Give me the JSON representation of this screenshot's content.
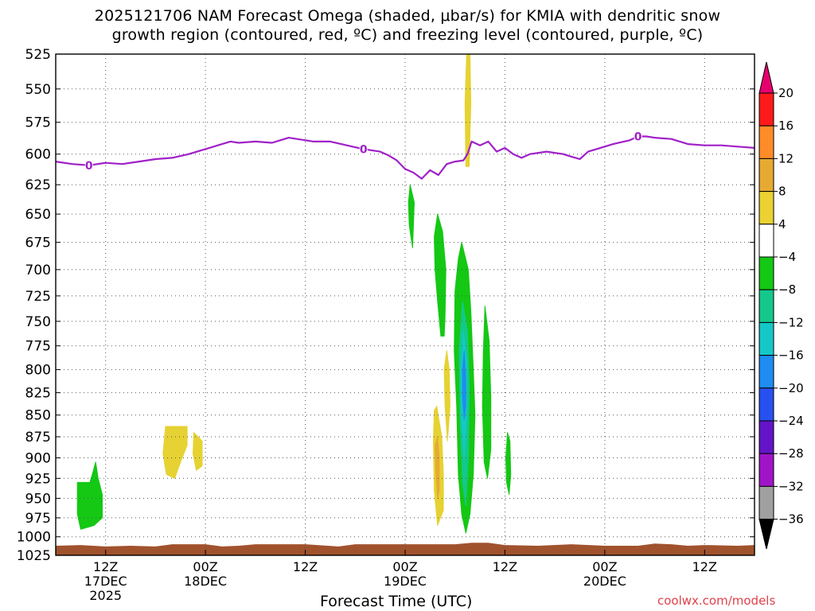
{
  "title_line1": "2025121706 NAM Forecast Omega (shaded, μbar/s) for KMIA with dendritic snow",
  "title_line2": "growth region (contoured, red, ºC) and freezing level (contoured, purple, ºC)",
  "credit": "coolwx.com/models",
  "chart_data": {
    "type": "time-height cross section",
    "title": "2025121706 NAM Forecast Omega (shaded, μbar/s) for KMIA with dendritic snow growth region (contoured, red, ºC) and freezing level (contoured, purple, ºC)",
    "xlabel": "Forecast Time (UTC)",
    "ylabel": "",
    "x_ticks": [
      {
        "label": "12Z",
        "sub1": "17DEC",
        "sub2": "2025",
        "hour": 6
      },
      {
        "label": "00Z",
        "sub1": "18DEC",
        "sub2": "",
        "hour": 18
      },
      {
        "label": "12Z",
        "sub1": "",
        "sub2": "",
        "hour": 30
      },
      {
        "label": "00Z",
        "sub1": "19DEC",
        "sub2": "",
        "hour": 42
      },
      {
        "label": "12Z",
        "sub1": "",
        "sub2": "",
        "hour": 54
      },
      {
        "label": "00Z",
        "sub1": "20DEC",
        "sub2": "",
        "hour": 66
      },
      {
        "label": "12Z",
        "sub1": "",
        "sub2": "",
        "hour": 78
      }
    ],
    "x_range_hours": [
      0,
      84
    ],
    "y_ticks": [
      525,
      550,
      575,
      600,
      625,
      650,
      675,
      700,
      725,
      750,
      775,
      800,
      825,
      850,
      875,
      900,
      925,
      950,
      975,
      1000,
      1025
    ],
    "y_range_hPa": [
      525,
      1025
    ],
    "y_scale": "log-pressure (inverted)",
    "grid": true,
    "freezing_level": {
      "label": "0",
      "label_hours": [
        4,
        37,
        70
      ],
      "points": [
        [
          0,
          606
        ],
        [
          2,
          608
        ],
        [
          4,
          609
        ],
        [
          6,
          607
        ],
        [
          8,
          608
        ],
        [
          10,
          606
        ],
        [
          12,
          604
        ],
        [
          14,
          603
        ],
        [
          16,
          600
        ],
        [
          18,
          596
        ],
        [
          20,
          592
        ],
        [
          21,
          590
        ],
        [
          22,
          591
        ],
        [
          24,
          590
        ],
        [
          26,
          591
        ],
        [
          27,
          589
        ],
        [
          28,
          587
        ],
        [
          29,
          588
        ],
        [
          31,
          590
        ],
        [
          33,
          590
        ],
        [
          35,
          593
        ],
        [
          37,
          596
        ],
        [
          39,
          598
        ],
        [
          40,
          601
        ],
        [
          41,
          605
        ],
        [
          42,
          612
        ],
        [
          43,
          615
        ],
        [
          44,
          620
        ],
        [
          45,
          613
        ],
        [
          46,
          617
        ],
        [
          47,
          608
        ],
        [
          48,
          606
        ],
        [
          49,
          605
        ],
        [
          49.5,
          600
        ],
        [
          50,
          590
        ],
        [
          51,
          593
        ],
        [
          52,
          590
        ],
        [
          53,
          598
        ],
        [
          54,
          595
        ],
        [
          55,
          600
        ],
        [
          56,
          603
        ],
        [
          57,
          600
        ],
        [
          59,
          598
        ],
        [
          61,
          600
        ],
        [
          62,
          602
        ],
        [
          63,
          604
        ],
        [
          64,
          598
        ],
        [
          65,
          596
        ],
        [
          67,
          592
        ],
        [
          69,
          589
        ],
        [
          70,
          586
        ],
        [
          71,
          586
        ],
        [
          72,
          587
        ],
        [
          74,
          588
        ],
        [
          76,
          592
        ],
        [
          78,
          593
        ],
        [
          80,
          593
        ],
        [
          82,
          594
        ],
        [
          84,
          595
        ]
      ]
    },
    "omega_colorbar": {
      "levels": [
        20,
        16,
        12,
        8,
        4,
        -4,
        -8,
        -12,
        -16,
        -20,
        -24,
        -28,
        -32,
        -36
      ],
      "colors": [
        "#ff1a1a",
        "#ff8c28",
        "#e6aa32",
        "#ebd232",
        "#ffffff",
        "#14c814",
        "#14c88c",
        "#14c8c8",
        "#1e8cf0",
        "#2850f0",
        "#6414c8",
        "#a014c8",
        "#a0a0a0"
      ],
      "top_arrow_color": "#e6006e",
      "bottom_arrow_color": "#000000"
    },
    "omega_regions": [
      {
        "range": "4 to 8",
        "color": "#e6d232",
        "points": [
          [
            47.0,
            780
          ],
          [
            47.3,
            800
          ],
          [
            47.4,
            840
          ],
          [
            47.1,
            880
          ],
          [
            46.8,
            840
          ],
          [
            46.7,
            800
          ]
        ]
      },
      {
        "range": "4 to 8",
        "color": "#e6d232",
        "points": [
          [
            49.4,
            525
          ],
          [
            49.8,
            525
          ],
          [
            49.9,
            560
          ],
          [
            49.7,
            610
          ],
          [
            49.3,
            610
          ],
          [
            49.2,
            560
          ]
        ]
      },
      {
        "range": "4 to 8",
        "color": "#e6d232",
        "points": [
          [
            13.2,
            863
          ],
          [
            15.8,
            863
          ],
          [
            15.8,
            885
          ],
          [
            15.0,
            905
          ],
          [
            14.3,
            925
          ],
          [
            13.3,
            920
          ],
          [
            12.9,
            895
          ]
        ]
      },
      {
        "range": "4 to 8",
        "color": "#e6d232",
        "points": [
          [
            16.6,
            870
          ],
          [
            17.6,
            880
          ],
          [
            17.6,
            910
          ],
          [
            16.9,
            915
          ],
          [
            16.5,
            895
          ]
        ]
      },
      {
        "range": "4 to 12",
        "color": "#e6d232",
        "points": [
          [
            45.8,
            840
          ],
          [
            46.4,
            875
          ],
          [
            46.6,
            920
          ],
          [
            46.6,
            965
          ],
          [
            45.9,
            985
          ],
          [
            45.5,
            940
          ],
          [
            45.4,
            880
          ],
          [
            45.5,
            845
          ]
        ]
      },
      {
        "range": "8 to 12",
        "color": "#e6aa32",
        "points": [
          [
            45.9,
            875
          ],
          [
            46.1,
            900
          ],
          [
            46.1,
            940
          ],
          [
            45.9,
            950
          ],
          [
            45.7,
            920
          ],
          [
            45.6,
            885
          ]
        ]
      },
      {
        "range": "-4 to -8",
        "color": "#14c814",
        "points": [
          [
            2.6,
            930
          ],
          [
            4.1,
            930
          ],
          [
            4.4,
            920
          ],
          [
            4.8,
            905
          ],
          [
            5.1,
            925
          ],
          [
            5.6,
            945
          ],
          [
            5.6,
            975
          ],
          [
            4.6,
            985
          ],
          [
            3.0,
            990
          ],
          [
            2.6,
            970
          ]
        ]
      },
      {
        "range": "-4 to -8",
        "color": "#14c814",
        "points": [
          [
            42.6,
            625
          ],
          [
            43.1,
            640
          ],
          [
            42.9,
            680
          ],
          [
            42.5,
            660
          ],
          [
            42.4,
            640
          ]
        ]
      },
      {
        "range": "-4 to -8",
        "color": "#14c814",
        "points": [
          [
            45.9,
            650
          ],
          [
            46.5,
            665
          ],
          [
            46.9,
            700
          ],
          [
            46.8,
            745
          ],
          [
            46.7,
            765
          ],
          [
            46.3,
            765
          ],
          [
            45.9,
            730
          ],
          [
            45.6,
            700
          ],
          [
            45.5,
            670
          ]
        ]
      },
      {
        "range": "-4 to -8",
        "color": "#14c814",
        "points": [
          [
            48.8,
            675
          ],
          [
            49.6,
            700
          ],
          [
            49.9,
            740
          ],
          [
            50.2,
            800
          ],
          [
            50.4,
            850
          ],
          [
            50.2,
            920
          ],
          [
            49.8,
            970
          ],
          [
            49.3,
            995
          ],
          [
            48.8,
            970
          ],
          [
            48.4,
            920
          ],
          [
            48.2,
            840
          ],
          [
            47.9,
            780
          ],
          [
            48.0,
            720
          ],
          [
            48.4,
            690
          ]
        ]
      },
      {
        "range": "-4 to -8",
        "color": "#14c814",
        "points": [
          [
            51.6,
            735
          ],
          [
            52.1,
            770
          ],
          [
            52.3,
            830
          ],
          [
            52.3,
            890
          ],
          [
            51.9,
            925
          ],
          [
            51.5,
            905
          ],
          [
            51.3,
            840
          ],
          [
            51.4,
            780
          ]
        ]
      },
      {
        "range": "-4 to -8",
        "color": "#14c814",
        "points": [
          [
            54.3,
            870
          ],
          [
            54.6,
            880
          ],
          [
            54.7,
            920
          ],
          [
            54.5,
            945
          ],
          [
            54.2,
            930
          ],
          [
            54.1,
            900
          ]
        ]
      },
      {
        "range": "-8 to -16",
        "color": "#14c88c",
        "points": [
          [
            48.9,
            730
          ],
          [
            49.5,
            760
          ],
          [
            49.7,
            820
          ],
          [
            49.6,
            900
          ],
          [
            49.3,
            960
          ],
          [
            48.9,
            930
          ],
          [
            48.6,
            850
          ],
          [
            48.5,
            780
          ]
        ]
      },
      {
        "range": "-12 to -16",
        "color": "#14c8c8",
        "points": [
          [
            49.0,
            760
          ],
          [
            49.4,
            790
          ],
          [
            49.4,
            850
          ],
          [
            49.1,
            900
          ],
          [
            48.8,
            860
          ],
          [
            48.7,
            800
          ]
        ]
      },
      {
        "range": "-16 to -20",
        "color": "#1e8cf0",
        "points": [
          [
            49.1,
            780
          ],
          [
            49.3,
            810
          ],
          [
            49.3,
            840
          ],
          [
            49.1,
            855
          ],
          [
            48.9,
            830
          ],
          [
            48.9,
            800
          ]
        ]
      }
    ],
    "terrain": {
      "color": "#a0522d",
      "top_hPa": [
        [
          0,
          1012
        ],
        [
          3,
          1011
        ],
        [
          6,
          1013
        ],
        [
          9,
          1012
        ],
        [
          12,
          1013
        ],
        [
          14,
          1010
        ],
        [
          18,
          1010
        ],
        [
          20,
          1013
        ],
        [
          22,
          1012
        ],
        [
          24,
          1010
        ],
        [
          30,
          1010
        ],
        [
          34,
          1013
        ],
        [
          36,
          1010
        ],
        [
          48,
          1010
        ],
        [
          50,
          1008
        ],
        [
          52,
          1008
        ],
        [
          54,
          1011
        ],
        [
          58,
          1012
        ],
        [
          62,
          1010
        ],
        [
          66,
          1012
        ],
        [
          70,
          1012
        ],
        [
          72,
          1009
        ],
        [
          74,
          1010
        ],
        [
          76,
          1012
        ],
        [
          78,
          1011
        ],
        [
          82,
          1012
        ],
        [
          84,
          1011
        ]
      ]
    }
  }
}
